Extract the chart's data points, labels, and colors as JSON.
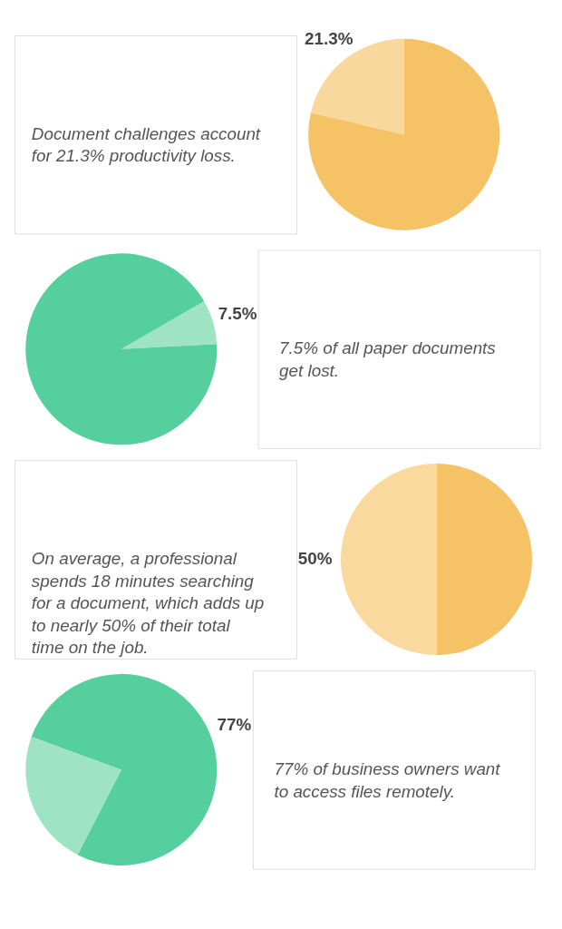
{
  "chart_data": [
    {
      "type": "pie",
      "categories": [
        null,
        null
      ],
      "values": [
        78.7,
        21.3
      ],
      "colors": [
        "#f5c266",
        "#f8d89c"
      ],
      "value_labels": [
        null,
        "21.3%"
      ],
      "annotations": [
        "Document challenges account for 21.3% productivity loss."
      ]
    },
    {
      "type": "pie",
      "categories": [
        null,
        null
      ],
      "values": [
        7.5,
        92.5
      ],
      "colors": [
        "#9fe3c5",
        "#56cf9e"
      ],
      "value_labels": [
        "7.5%",
        null
      ],
      "annotations": [
        "7.5% of all paper documents get lost."
      ]
    },
    {
      "type": "pie",
      "categories": [
        null,
        null
      ],
      "values": [
        50,
        50
      ],
      "colors": [
        "#f5c266",
        "#f9d99e"
      ],
      "value_labels": [
        null,
        "50%"
      ],
      "annotations": [
        "On average, a professional spends 18 minutes searching for a document, which adds up to nearly 50% of their total time on the job."
      ]
    },
    {
      "type": "pie",
      "categories": [
        null,
        null
      ],
      "values": [
        77,
        23
      ],
      "colors": [
        "#56cf9e",
        "#9fe3c5"
      ],
      "value_labels": [
        "77%",
        null
      ],
      "annotations": [
        "77% of business owners want to access files remotely."
      ]
    }
  ]
}
